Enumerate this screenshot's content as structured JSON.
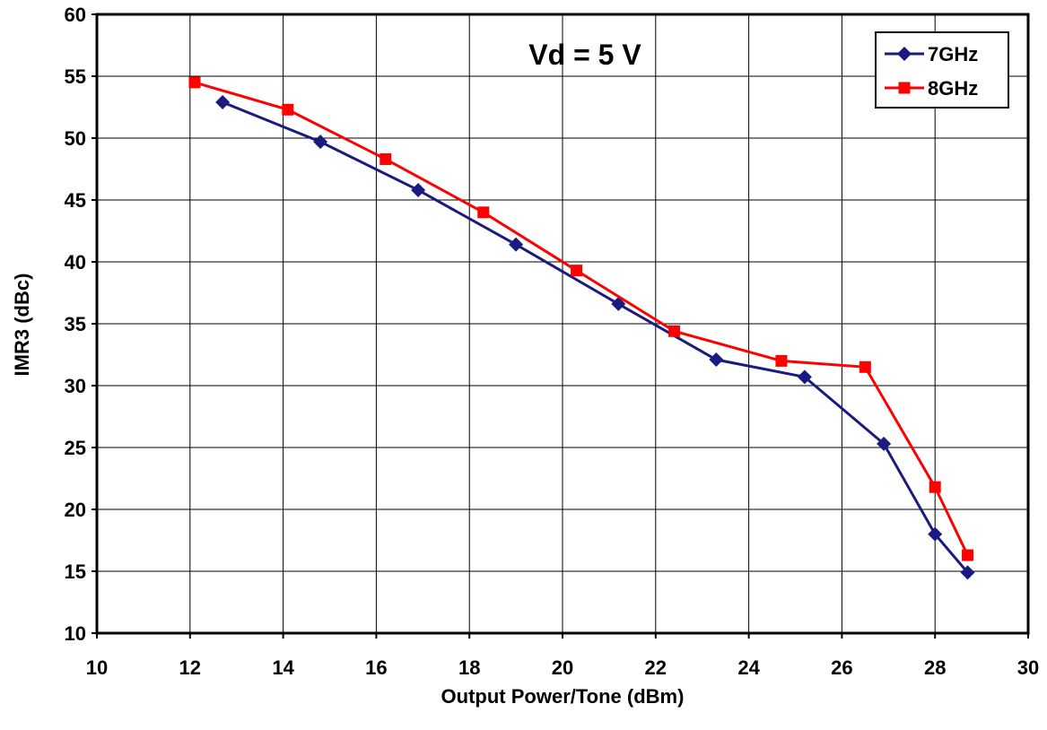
{
  "chart_data": {
    "type": "line",
    "xlabel": "Output Power/Tone (dBm)",
    "ylabel": "IMR3 (dBc)",
    "annotation": "Vd = 5 V",
    "xlim": [
      10,
      30
    ],
    "ylim": [
      10,
      60
    ],
    "x_ticks": [
      "10",
      "12",
      "14",
      "16",
      "18",
      "20",
      "22",
      "24",
      "26",
      "28",
      "30"
    ],
    "y_ticks": [
      "10",
      "15",
      "20",
      "25",
      "30",
      "35",
      "40",
      "45",
      "50",
      "55",
      "60"
    ],
    "grid": true,
    "legend_position": "top-right",
    "series": [
      {
        "name": "7GHz",
        "color": "#1a1a80",
        "marker": "diamond",
        "x": [
          12.7,
          14.8,
          16.9,
          19.0,
          21.2,
          23.3,
          25.2,
          26.9,
          28.0,
          28.7
        ],
        "y": [
          52.9,
          49.7,
          45.8,
          41.4,
          36.6,
          32.1,
          30.7,
          25.3,
          18.0,
          14.9
        ]
      },
      {
        "name": "8GHz",
        "color": "#ff0000",
        "marker": "square",
        "x": [
          12.1,
          14.1,
          16.2,
          18.3,
          20.3,
          22.4,
          24.7,
          26.5,
          28.0,
          28.7
        ],
        "y": [
          54.5,
          52.3,
          48.3,
          44.0,
          39.3,
          34.4,
          32.0,
          31.5,
          21.8,
          16.3
        ]
      }
    ]
  }
}
